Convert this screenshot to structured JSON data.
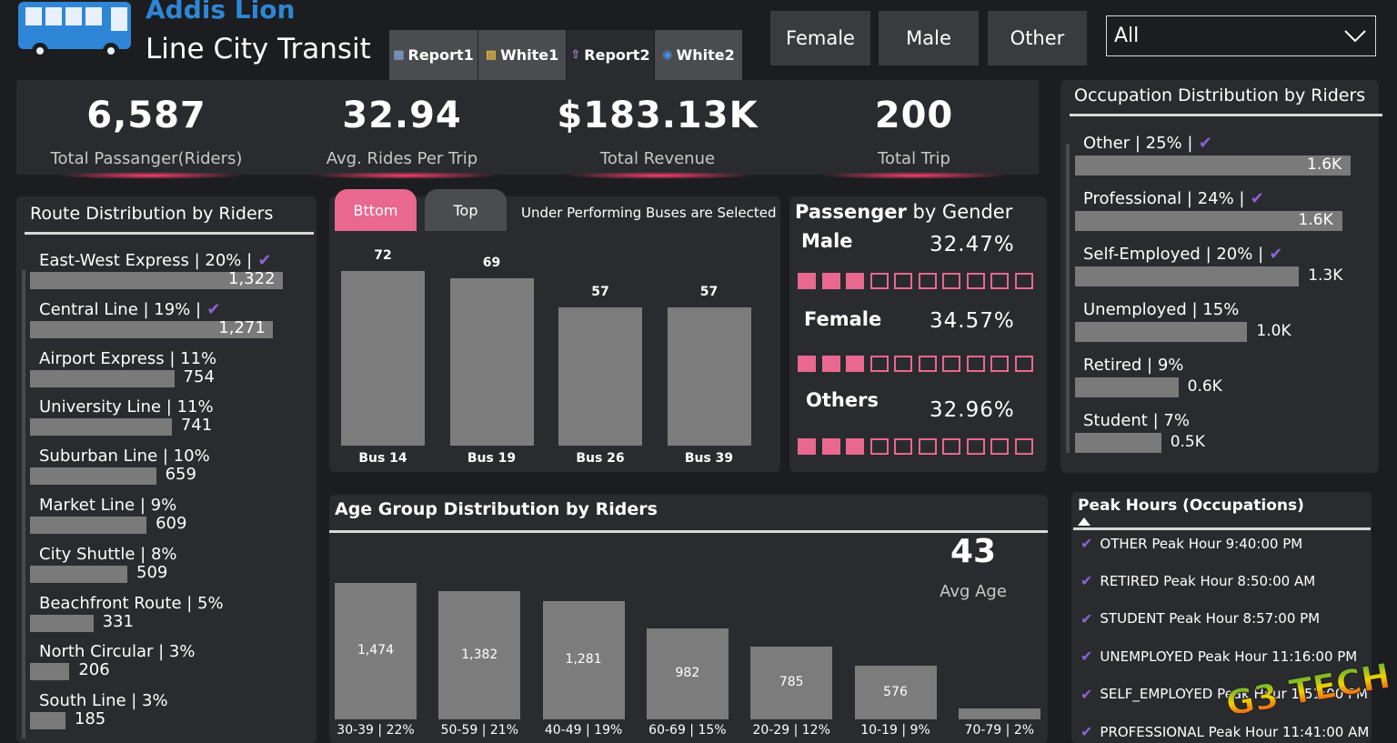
{
  "header": {
    "brand": "Addis Lion",
    "subtitle": "Line City Transit",
    "nav": [
      {
        "label": "Report1",
        "icon": "calendar-icon"
      },
      {
        "label": "White1",
        "icon": "bus-icon"
      },
      {
        "label": "Report2",
        "icon": "top-arrow-icon"
      },
      {
        "label": "White2",
        "icon": "car-icon"
      }
    ],
    "gender_filters": [
      "Female",
      "Male",
      "Other"
    ],
    "dropdown_value": "All"
  },
  "kpis": [
    {
      "value": "6,587",
      "label": "Total Passanger(Riders)"
    },
    {
      "value": "32.94",
      "label": "Avg. Rides Per Trip"
    },
    {
      "value": "$183.13K",
      "label": "Total Revenue"
    },
    {
      "value": "200",
      "label": "Total Trip"
    }
  ],
  "route": {
    "title": "Route Distribution by Riders",
    "items": [
      {
        "name": "East-West Express | 20% |",
        "value": "1,322",
        "num": 1322,
        "checked": true
      },
      {
        "name": "Central Line | 19% |",
        "value": "1,271",
        "num": 1271,
        "checked": true
      },
      {
        "name": "Airport Express | 11%",
        "value": "754",
        "num": 754,
        "checked": false
      },
      {
        "name": "University Line | 11%",
        "value": "741",
        "num": 741,
        "checked": false
      },
      {
        "name": "Suburban Line | 10%",
        "value": "659",
        "num": 659,
        "checked": false
      },
      {
        "name": "Market Line | 9%",
        "value": "609",
        "num": 609,
        "checked": false
      },
      {
        "name": "City Shuttle | 8%",
        "value": "509",
        "num": 509,
        "checked": false
      },
      {
        "name": "Beachfront Route | 5%",
        "value": "331",
        "num": 331,
        "checked": false
      },
      {
        "name": "North Circular | 3%",
        "value": "206",
        "num": 206,
        "checked": false
      },
      {
        "name": "South Line | 3%",
        "value": "185",
        "num": 185,
        "checked": false
      }
    ]
  },
  "buses": {
    "buttons": [
      "Bttom",
      "Top"
    ],
    "active": "Bttom",
    "note": "Under Performing Buses are Selected",
    "chart_data": {
      "type": "bar",
      "categories": [
        "Bus 14",
        "Bus 19",
        "Bus 26",
        "Bus 39"
      ],
      "values": [
        72,
        69,
        57,
        57
      ]
    }
  },
  "gender": {
    "title_bold": "Passenger",
    "title_rest": " by Gender",
    "items": [
      {
        "label": "Male",
        "pct": "32.47%",
        "filled": 3,
        "total": 10
      },
      {
        "label": "Female",
        "pct": "34.57%",
        "filled": 3,
        "total": 10
      },
      {
        "label": "Others",
        "pct": "32.96%",
        "filled": 3,
        "total": 10
      }
    ],
    "accent": "#e8688f"
  },
  "occupation": {
    "title": "Occupation Distribution by Riders",
    "items": [
      {
        "name": "Other | 25% |",
        "value": "1.6K",
        "num": 1.6,
        "checked": true
      },
      {
        "name": "Professional | 24% |",
        "value": "1.6K",
        "num": 1.55,
        "checked": true
      },
      {
        "name": "Self-Employed | 20% |",
        "value": "1.3K",
        "num": 1.3,
        "checked": true
      },
      {
        "name": "Unemployed | 15%",
        "value": "1.0K",
        "num": 1.0,
        "checked": false
      },
      {
        "name": "Retired | 9%",
        "value": "0.6K",
        "num": 0.6,
        "checked": false
      },
      {
        "name": "Student | 7%",
        "value": "0.5K",
        "num": 0.5,
        "checked": false
      }
    ]
  },
  "age": {
    "title": "Age Group Distribution by Riders",
    "avg_value": "43",
    "avg_label": "Avg Age",
    "chart_data": {
      "type": "bar",
      "categories": [
        "30-39 | 22%",
        "50-59 | 21%",
        "40-49 | 19%",
        "60-69 | 15%",
        "20-29 | 12%",
        "10-19 | 9%",
        "70-79 | 2%"
      ],
      "values": [
        1474,
        1382,
        1281,
        982,
        785,
        576,
        120
      ],
      "labels": [
        "1,474",
        "1,382",
        "1,281",
        "982",
        "785",
        "576",
        ""
      ]
    }
  },
  "peak": {
    "title": "Peak Hours (Occupations)",
    "items": [
      "OTHER Peak Hour 9:40:00 PM",
      "RETIRED Peak Hour 8:50:00 AM",
      "STUDENT Peak Hour 8:57:00 PM",
      "UNEMPLOYED Peak Hour 11:16:00 PM",
      "SELF_EMPLOYED Peak Hour 1:51:00 PM",
      "PROFESSIONAL Peak Hour 11:41:00 AM"
    ]
  },
  "watermark": "G3 TECH"
}
